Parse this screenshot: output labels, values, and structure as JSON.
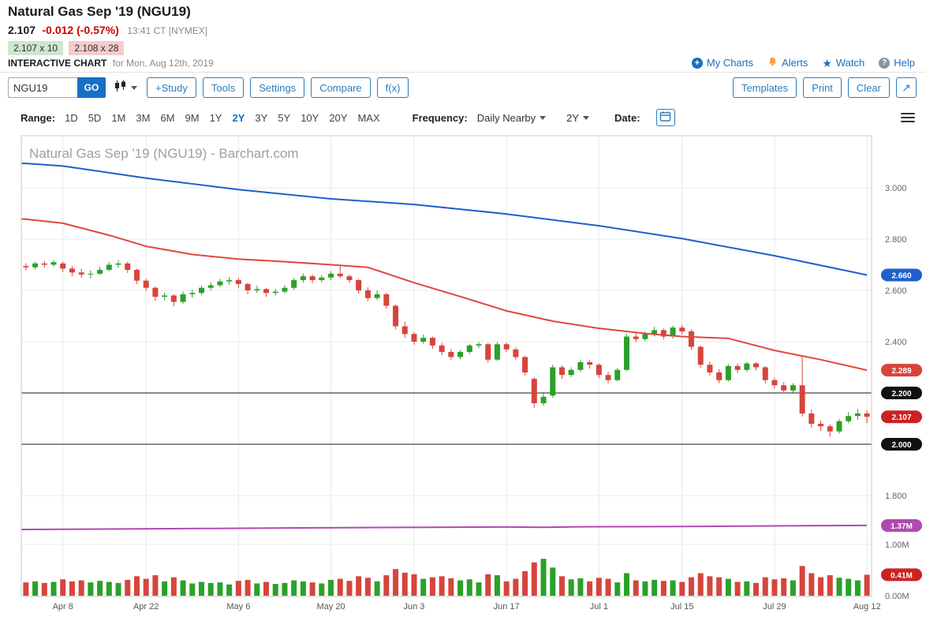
{
  "theme": {
    "accent_blue": "#1b6fc2",
    "button_blue": "#2e7cba",
    "price_red": "#cc0000",
    "bid_bg": "#cfe6cf",
    "ask_bg": "#f3cccc"
  },
  "header": {
    "title": "Natural Gas Sep '19 (NGU19)",
    "last": "2.107",
    "change": "-0.012 (-0.57%)",
    "time": "13:41 CT [NYMEX]",
    "bid": "2.107 x 10",
    "ask": "2.108 x 28",
    "interactive_label": "INTERACTIVE CHART",
    "interactive_date": "for Mon, Aug 12th, 2019",
    "links": [
      {
        "label": "My Charts",
        "icon": "plus-circle"
      },
      {
        "label": "Alerts",
        "icon": "bell"
      },
      {
        "label": "Watch",
        "icon": "star"
      },
      {
        "label": "Help",
        "icon": "question-mark"
      }
    ]
  },
  "toolbar": {
    "symbol_value": "NGU19",
    "go_label": "GO",
    "buttons_left": [
      "+Study",
      "Tools",
      "Settings",
      "Compare",
      "f(x)"
    ],
    "buttons_right": [
      "Templates",
      "Print",
      "Clear"
    ],
    "expand_glyph": "↗"
  },
  "range_bar": {
    "range_label": "Range:",
    "options": [
      "1D",
      "5D",
      "1M",
      "3M",
      "6M",
      "9M",
      "1Y",
      "2Y",
      "3Y",
      "5Y",
      "10Y",
      "20Y",
      "MAX"
    ],
    "selected": "2Y",
    "frequency_label": "Frequency:",
    "frequency_value": "Daily Nearby",
    "period_value": "2Y",
    "date_label": "Date:"
  },
  "chart_data": {
    "type": "candlestick",
    "watermark": "Natural Gas Sep '19 (NGU19) - Barchart.com",
    "ylim": [
      1.8,
      3.2
    ],
    "volume_ylim": [
      0,
      1.5
    ],
    "dates": [
      "Apr 2",
      "Apr 3",
      "Apr 4",
      "Apr 5",
      "Apr 8",
      "Apr 9",
      "Apr 10",
      "Apr 11",
      "Apr 12",
      "Apr 15",
      "Apr 16",
      "Apr 17",
      "Apr 18",
      "Apr 22",
      "Apr 23",
      "Apr 24",
      "Apr 25",
      "Apr 26",
      "Apr 29",
      "Apr 30",
      "May 1",
      "May 2",
      "May 3",
      "May 6",
      "May 7",
      "May 8",
      "May 9",
      "May 10",
      "May 13",
      "May 14",
      "May 15",
      "May 16",
      "May 17",
      "May 20",
      "May 21",
      "May 22",
      "May 23",
      "May 24",
      "May 28",
      "May 29",
      "May 30",
      "May 31",
      "Jun 3",
      "Jun 4",
      "Jun 5",
      "Jun 6",
      "Jun 7",
      "Jun 10",
      "Jun 11",
      "Jun 12",
      "Jun 13",
      "Jun 14",
      "Jun 17",
      "Jun 18",
      "Jun 19",
      "Jun 20",
      "Jun 21",
      "Jun 24",
      "Jun 25",
      "Jun 26",
      "Jun 27",
      "Jun 28",
      "Jul 1",
      "Jul 2",
      "Jul 3",
      "Jul 5",
      "Jul 8",
      "Jul 9",
      "Jul 10",
      "Jul 11",
      "Jul 12",
      "Jul 15",
      "Jul 16",
      "Jul 17",
      "Jul 18",
      "Jul 19",
      "Jul 22",
      "Jul 23",
      "Jul 24",
      "Jul 25",
      "Jul 26",
      "Jul 29",
      "Jul 30",
      "Jul 31",
      "Aug 1",
      "Aug 2",
      "Aug 5",
      "Aug 6",
      "Aug 7",
      "Aug 8",
      "Aug 9",
      "Aug 12"
    ],
    "open": [
      2.695,
      2.69,
      2.705,
      2.7,
      2.705,
      2.685,
      2.67,
      2.662,
      2.665,
      2.68,
      2.7,
      2.705,
      2.68,
      2.638,
      2.61,
      2.575,
      2.58,
      2.555,
      2.585,
      2.59,
      2.61,
      2.62,
      2.635,
      2.64,
      2.625,
      2.6,
      2.605,
      2.59,
      2.595,
      2.61,
      2.64,
      2.655,
      2.64,
      2.65,
      2.665,
      2.655,
      2.64,
      2.6,
      2.57,
      2.585,
      2.54,
      2.46,
      2.43,
      2.4,
      2.415,
      2.385,
      2.36,
      2.34,
      2.36,
      2.385,
      2.39,
      2.33,
      2.39,
      2.37,
      2.34,
      2.255,
      2.16,
      2.19,
      2.3,
      2.27,
      2.29,
      2.32,
      2.31,
      2.27,
      2.25,
      2.29,
      2.42,
      2.41,
      2.43,
      2.445,
      2.42,
      2.455,
      2.44,
      2.38,
      2.31,
      2.28,
      2.25,
      2.305,
      2.29,
      2.315,
      2.3,
      2.25,
      2.23,
      2.21,
      2.23,
      2.12,
      2.08,
      2.07,
      2.05,
      2.09,
      2.11,
      2.12
    ],
    "high": [
      2.706,
      2.712,
      2.715,
      2.718,
      2.712,
      2.695,
      2.684,
      2.678,
      2.692,
      2.71,
      2.718,
      2.712,
      2.685,
      2.645,
      2.615,
      2.592,
      2.585,
      2.595,
      2.602,
      2.618,
      2.632,
      2.645,
      2.652,
      2.648,
      2.63,
      2.618,
      2.61,
      2.606,
      2.62,
      2.648,
      2.665,
      2.662,
      2.66,
      2.675,
      2.695,
      2.662,
      2.645,
      2.612,
      2.6,
      2.59,
      2.545,
      2.478,
      2.438,
      2.428,
      2.42,
      2.395,
      2.372,
      2.368,
      2.392,
      2.398,
      2.395,
      2.398,
      2.396,
      2.378,
      2.345,
      2.262,
      2.205,
      2.31,
      2.308,
      2.3,
      2.33,
      2.328,
      2.315,
      2.282,
      2.298,
      2.43,
      2.438,
      2.44,
      2.458,
      2.452,
      2.462,
      2.465,
      2.448,
      2.385,
      2.322,
      2.292,
      2.312,
      2.315,
      2.322,
      2.32,
      2.305,
      2.258,
      2.242,
      2.238,
      2.345,
      2.135,
      2.092,
      2.078,
      2.098,
      2.125,
      2.138,
      2.132
    ],
    "low": [
      2.678,
      2.682,
      2.688,
      2.692,
      2.672,
      2.655,
      2.65,
      2.648,
      2.66,
      2.675,
      2.688,
      2.668,
      2.625,
      2.598,
      2.56,
      2.562,
      2.538,
      2.548,
      2.572,
      2.582,
      2.6,
      2.612,
      2.622,
      2.608,
      2.585,
      2.59,
      2.575,
      2.58,
      2.588,
      2.602,
      2.63,
      2.628,
      2.632,
      2.64,
      2.648,
      2.628,
      2.588,
      2.558,
      2.562,
      2.528,
      2.448,
      2.415,
      2.388,
      2.392,
      2.372,
      2.348,
      2.328,
      2.332,
      2.352,
      2.375,
      2.318,
      2.325,
      2.36,
      2.33,
      2.268,
      2.142,
      2.15,
      2.182,
      2.255,
      2.262,
      2.282,
      2.295,
      2.258,
      2.238,
      2.245,
      2.285,
      2.398,
      2.402,
      2.42,
      2.408,
      2.412,
      2.428,
      2.368,
      2.298,
      2.268,
      2.238,
      2.245,
      2.278,
      2.282,
      2.288,
      2.238,
      2.218,
      2.198,
      2.202,
      2.108,
      2.065,
      2.052,
      2.029,
      2.042,
      2.082,
      2.095,
      2.082
    ],
    "close": [
      2.69,
      2.705,
      2.7,
      2.71,
      2.685,
      2.67,
      2.662,
      2.665,
      2.68,
      2.7,
      2.705,
      2.68,
      2.638,
      2.61,
      2.575,
      2.58,
      2.555,
      2.585,
      2.59,
      2.61,
      2.62,
      2.635,
      2.64,
      2.625,
      2.6,
      2.605,
      2.59,
      2.595,
      2.61,
      2.64,
      2.655,
      2.64,
      2.65,
      2.665,
      2.655,
      2.64,
      2.6,
      2.57,
      2.585,
      2.54,
      2.46,
      2.43,
      2.4,
      2.415,
      2.385,
      2.36,
      2.34,
      2.36,
      2.385,
      2.39,
      2.33,
      2.39,
      2.37,
      2.34,
      2.28,
      2.16,
      2.185,
      2.3,
      2.27,
      2.29,
      2.32,
      2.31,
      2.27,
      2.25,
      2.29,
      2.42,
      2.41,
      2.43,
      2.445,
      2.42,
      2.455,
      2.44,
      2.38,
      2.31,
      2.28,
      2.25,
      2.305,
      2.29,
      2.315,
      2.3,
      2.25,
      2.23,
      2.21,
      2.23,
      2.12,
      2.08,
      2.07,
      2.05,
      2.09,
      2.11,
      2.12,
      2.107
    ],
    "volume": [
      0.26,
      0.28,
      0.25,
      0.27,
      0.32,
      0.28,
      0.3,
      0.26,
      0.29,
      0.27,
      0.25,
      0.31,
      0.38,
      0.33,
      0.4,
      0.28,
      0.36,
      0.3,
      0.24,
      0.27,
      0.25,
      0.26,
      0.22,
      0.29,
      0.31,
      0.24,
      0.27,
      0.23,
      0.25,
      0.3,
      0.28,
      0.26,
      0.24,
      0.31,
      0.33,
      0.29,
      0.38,
      0.35,
      0.28,
      0.4,
      0.52,
      0.45,
      0.42,
      0.33,
      0.36,
      0.38,
      0.34,
      0.3,
      0.32,
      0.26,
      0.42,
      0.4,
      0.28,
      0.33,
      0.48,
      0.65,
      0.72,
      0.55,
      0.38,
      0.32,
      0.34,
      0.28,
      0.35,
      0.33,
      0.26,
      0.44,
      0.3,
      0.28,
      0.31,
      0.29,
      0.3,
      0.27,
      0.36,
      0.44,
      0.38,
      0.36,
      0.33,
      0.27,
      0.28,
      0.25,
      0.36,
      0.32,
      0.34,
      0.3,
      0.58,
      0.44,
      0.36,
      0.4,
      0.35,
      0.33,
      0.3,
      0.41
    ],
    "x_tick_indices": [
      4,
      13,
      23,
      33,
      42,
      52,
      62,
      71,
      81,
      91
    ],
    "x_tick_labels": [
      "Apr 8",
      "Apr 22",
      "May 6",
      "May 20",
      "Jun 3",
      "Jun 17",
      "Jul 1",
      "Jul 15",
      "Jul 29",
      "Aug 12"
    ],
    "y_ticks": [
      {
        "label": "3.000",
        "v": 3.0
      },
      {
        "label": "2.800",
        "v": 2.8
      },
      {
        "label": "2.600",
        "v": 2.6
      },
      {
        "label": "2.400",
        "v": 2.4
      },
      {
        "label": "1.800",
        "v": 1.8
      }
    ],
    "hlines": [
      2.2,
      2.0
    ],
    "overlays": [
      {
        "name": "ma-blue",
        "color": "#215fcb",
        "width": 2,
        "scale": "price",
        "points": [
          [
            0,
            3.095
          ],
          [
            4,
            3.085
          ],
          [
            13,
            3.038
          ],
          [
            23,
            2.993
          ],
          [
            33,
            2.957
          ],
          [
            42,
            2.935
          ],
          [
            52,
            2.898
          ],
          [
            62,
            2.852
          ],
          [
            71,
            2.802
          ],
          [
            81,
            2.735
          ],
          [
            91,
            2.66
          ]
        ]
      },
      {
        "name": "ma-red",
        "color": "#e2473d",
        "width": 2,
        "scale": "price",
        "points": [
          [
            0,
            2.878
          ],
          [
            4,
            2.862
          ],
          [
            9,
            2.815
          ],
          [
            13,
            2.772
          ],
          [
            18,
            2.74
          ],
          [
            23,
            2.722
          ],
          [
            28,
            2.712
          ],
          [
            33,
            2.7
          ],
          [
            37,
            2.69
          ],
          [
            42,
            2.63
          ],
          [
            47,
            2.576
          ],
          [
            52,
            2.52
          ],
          [
            57,
            2.48
          ],
          [
            62,
            2.452
          ],
          [
            67,
            2.432
          ],
          [
            71,
            2.42
          ],
          [
            76,
            2.413
          ],
          [
            81,
            2.366
          ],
          [
            86,
            2.33
          ],
          [
            91,
            2.289
          ]
        ]
      },
      {
        "name": "volume-line",
        "color": "#b04ab0",
        "width": 2,
        "scale": "volume",
        "points": [
          [
            0,
            1.293
          ],
          [
            12,
            1.304
          ],
          [
            20,
            1.312
          ],
          [
            28,
            1.322
          ],
          [
            36,
            1.33
          ],
          [
            44,
            1.334
          ],
          [
            52,
            1.34
          ],
          [
            56,
            1.336
          ],
          [
            60,
            1.344
          ],
          [
            68,
            1.348
          ],
          [
            76,
            1.356
          ],
          [
            84,
            1.366
          ],
          [
            91,
            1.37
          ]
        ]
      }
    ],
    "right_axis": {
      "price_badges": [
        {
          "label": "2.660",
          "v": 2.66,
          "color": "#215fcb",
          "name": "ma-blue-badge"
        },
        {
          "label": "2.289",
          "v": 2.289,
          "color": "#d6453c",
          "name": "ma-red-badge"
        },
        {
          "label": "2.200",
          "v": 2.2,
          "color": "#111111",
          "name": "level-2200-badge"
        },
        {
          "label": "2.107",
          "v": 2.107,
          "color": "#cc2222",
          "name": "last-price-badge"
        },
        {
          "label": "2.000",
          "v": 2.0,
          "color": "#111111",
          "name": "level-2000-badge"
        }
      ],
      "volume_ticks": [
        {
          "label": "1.00M",
          "v": 1.0
        },
        {
          "label": "0.00M",
          "v": 0.0
        }
      ],
      "volume_badges": [
        {
          "label": "1.37M",
          "v": 1.37,
          "color": "#b04ab0",
          "name": "volume-line-badge"
        },
        {
          "label": "0.41M",
          "v": 0.41,
          "color": "#cc2222",
          "name": "volume-bar-badge"
        }
      ]
    },
    "colors": {
      "up": "#2aa12a",
      "down": "#d6453c",
      "grid": "#e8e8e8",
      "hline": "#1a1a1a",
      "border": "#c8c8c8",
      "watermark": "#9aa0a6",
      "tick_text": "#666666",
      "x_text": "#555555"
    }
  }
}
